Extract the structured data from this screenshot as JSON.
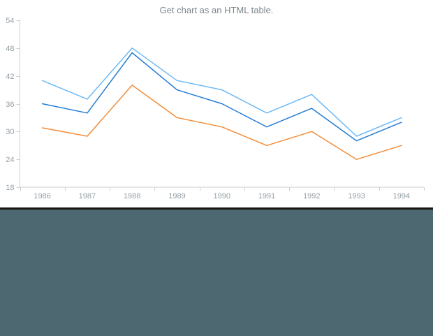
{
  "chart": {
    "title": "Get chart as an HTML table."
  },
  "chart_data": {
    "type": "line",
    "title": "Get chart as an HTML table.",
    "categories": [
      "1986",
      "1987",
      "1988",
      "1989",
      "1990",
      "1991",
      "1992",
      "1993",
      "1994"
    ],
    "series": [
      {
        "color": "#64b5f6",
        "values": [
          41,
          37,
          48,
          41,
          39,
          34,
          38,
          29,
          33
        ]
      },
      {
        "color": "#1976d2",
        "values": [
          36,
          34,
          47,
          39,
          36,
          31,
          35,
          28,
          32
        ]
      },
      {
        "color": "#ef6c00",
        "values": [
          30.8,
          29,
          40,
          33,
          31,
          27,
          30,
          24,
          27
        ]
      }
    ],
    "xlabel": "",
    "ylabel": "",
    "ylim": [
      18,
      54
    ],
    "yticks": [
      18,
      24,
      30,
      36,
      42,
      48,
      54
    ],
    "grid": false,
    "legend": "none"
  },
  "colors": {
    "axis": "#cecece",
    "axis_label": "#95a0a6",
    "title": "#7c868e",
    "panel": "#4d6870",
    "divider": "#1b1613",
    "background": "#ffffff"
  }
}
